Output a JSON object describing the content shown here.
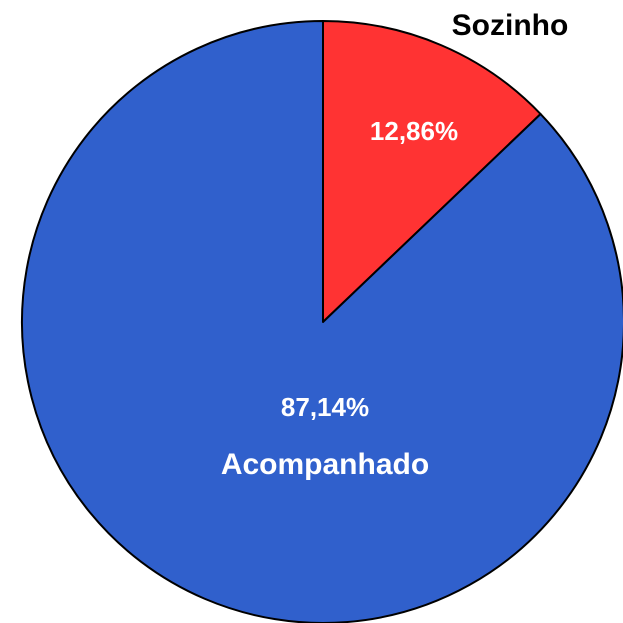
{
  "chart_data": {
    "type": "pie",
    "categories": [
      "Sozinho",
      "Acompanhado"
    ],
    "values": [
      12.86,
      87.14
    ],
    "value_labels": [
      "12,86%",
      "87,14%"
    ],
    "colors": [
      "#ff3333",
      "#3060cc"
    ]
  }
}
